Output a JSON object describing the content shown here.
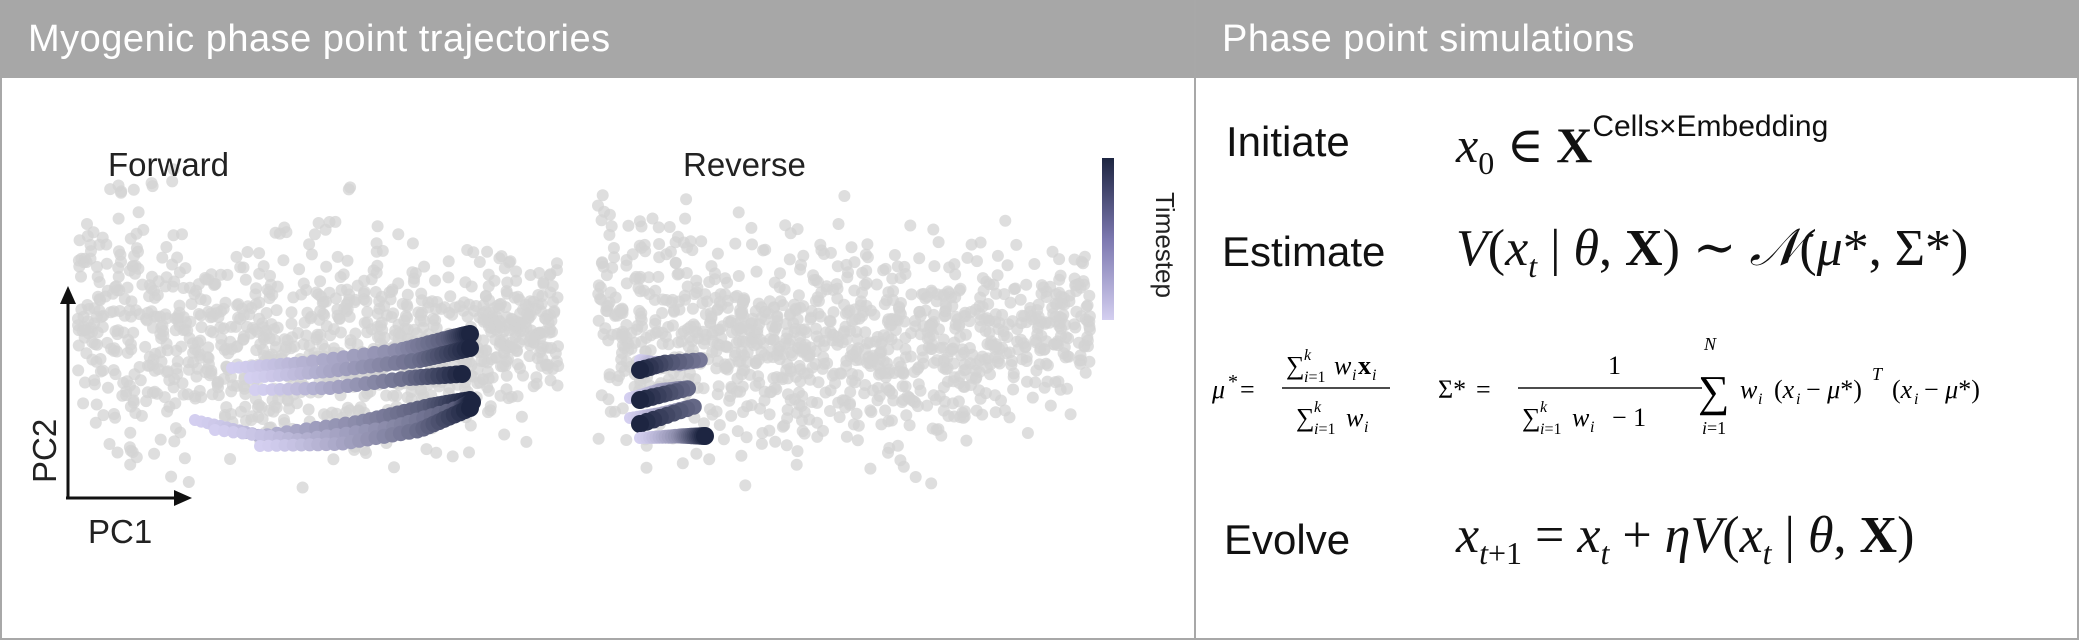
{
  "left_panel": {
    "title": "Myogenic phase point trajectories",
    "forward_label": "Forward",
    "reverse_label": "Reverse",
    "axis_x_label": "PC1",
    "axis_y_label": "PC2",
    "colorbar_label": "Timestep",
    "colors": {
      "background_points": "#d3d3d3",
      "timestep_start": "#d4cff0",
      "timestep_end": "#1d2541"
    }
  },
  "right_panel": {
    "title": "Phase point simulations",
    "steps": {
      "initiate": "Initiate",
      "estimate": "Estimate",
      "evolve": "Evolve"
    },
    "initiate_superscript": "Cells×Embedding"
  }
}
